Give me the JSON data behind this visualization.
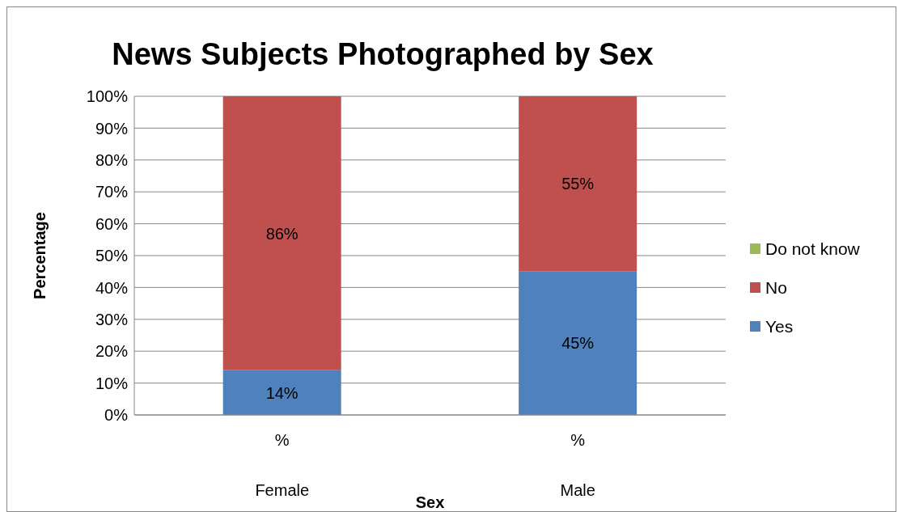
{
  "chart_data": {
    "type": "bar",
    "title": "News Subjects Photographed by Sex",
    "xlabel": "Sex",
    "ylabel": "Percentage",
    "categories": [
      "%",
      "%"
    ],
    "annotations": [
      "Female",
      "Male"
    ],
    "stacked": true,
    "series": [
      {
        "name": "Yes",
        "color": "#4f81bd",
        "values": [
          14,
          45
        ],
        "value_labels": [
          "14%",
          "45%"
        ]
      },
      {
        "name": "No",
        "color": "#c0504d",
        "values": [
          86,
          55
        ],
        "value_labels": [
          "86%",
          "55%"
        ]
      },
      {
        "name": "Do not know",
        "color": "#9bbb59",
        "values": [
          0,
          0
        ],
        "value_labels": [
          null,
          null
        ]
      }
    ],
    "ylim": [
      0,
      100
    ],
    "yticks": [
      {
        "value": 0,
        "label": "0%"
      },
      {
        "value": 10,
        "label": "10%"
      },
      {
        "value": 20,
        "label": "20%"
      },
      {
        "value": 30,
        "label": "30%"
      },
      {
        "value": 40,
        "label": "40%"
      },
      {
        "value": 50,
        "label": "50%"
      },
      {
        "value": 60,
        "label": "60%"
      },
      {
        "value": 70,
        "label": "70%"
      },
      {
        "value": 80,
        "label": "80%"
      },
      {
        "value": 90,
        "label": "90%"
      },
      {
        "value": 100,
        "label": "100%"
      }
    ],
    "grid": "y",
    "legend": "right"
  }
}
